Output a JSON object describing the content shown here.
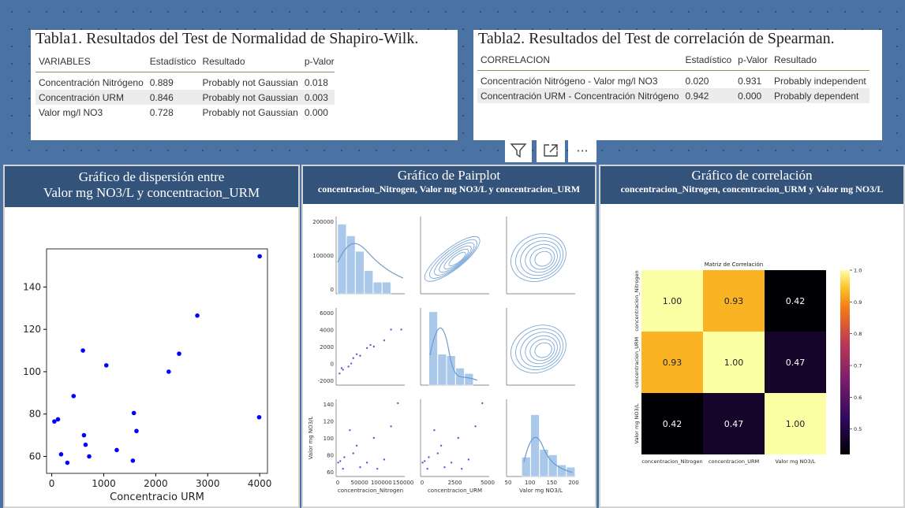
{
  "table1": {
    "title": "Tabla1. Resultados del Test de Normalidad de Shapiro-Wilk.",
    "headers": [
      "VARIABLES",
      "Estadístico",
      "Resultado",
      "p-Valor"
    ],
    "rows": [
      [
        "Concentración Nitrógeno",
        "0.889",
        "Probably not Gaussian",
        "0.018"
      ],
      [
        "Concentración URM",
        "0.846",
        "Probably not Gaussian",
        "0.003"
      ],
      [
        "Valor mg/l NO3",
        "0.728",
        "Probably not Gaussian",
        "0.000"
      ]
    ]
  },
  "table2": {
    "title": "Tabla2. Resultados del Test de correlación de Spearman.",
    "headers": [
      "CORRELACION",
      "Estadístico",
      "p-Valor",
      "Resultado"
    ],
    "rows": [
      [
        "Concentración Nitrógeno - Valor mg/l NO3",
        "0.020",
        "0.931",
        "Probably independent"
      ],
      [
        "Concentración URM - Concentración Nitrógeno",
        "0.942",
        "0.000",
        "Probably dependent"
      ]
    ]
  },
  "toolbar": {
    "filter_icon": "filter-icon",
    "focus_icon": "focus-mode-icon",
    "more_icon": "more-options-icon",
    "more_label": "···"
  },
  "panel1": {
    "title_line1": "Gráfico de dispersión entre",
    "title_line2": "Valor mg NO3/L y concentracion_URM"
  },
  "panel2": {
    "title_line1": "Gráfico de Pairplot",
    "title_line2": "concentracion_Nitrogen, Valor mg NO3/L y concentracion_URM"
  },
  "panel3": {
    "title_line1": "Gráfico de correlación",
    "title_line2": "concentracion_Nitrogen, concentracion_URM y Valor mg NO3/L"
  },
  "chart_data": [
    {
      "type": "scatter",
      "xlabel": "Concentracio URM",
      "ylabel": "",
      "xlim": [
        -100,
        4150
      ],
      "ylim": [
        52,
        158
      ],
      "xticks": [
        0,
        1000,
        2000,
        3000,
        4000
      ],
      "yticks": [
        60,
        80,
        100,
        120,
        140
      ],
      "color": "#0000ff",
      "x": [
        50,
        120,
        180,
        300,
        420,
        600,
        650,
        620,
        720,
        1050,
        1250,
        1560,
        1580,
        1630,
        2250,
        2450,
        2800,
        3990,
        4000
      ],
      "y": [
        76.5,
        77.5,
        61,
        57,
        88.5,
        110,
        65.5,
        70,
        60,
        103,
        63,
        58,
        80.5,
        72,
        100,
        108.5,
        126.5,
        78.5,
        154.5
      ]
    },
    {
      "type": "scatter",
      "title": "",
      "variables": [
        "concentracion_Nitrogen",
        "concentracion_URM",
        "Valor mg NO3/L"
      ],
      "row_ticks": [
        [
          "0",
          "100000",
          "200000"
        ],
        [
          "-2000",
          "0",
          "2000",
          "4000",
          "6000"
        ],
        [
          "60",
          "80",
          "100",
          "120",
          "140"
        ]
      ],
      "col_ticks": [
        [
          "0",
          "50000",
          "100000",
          "150000"
        ],
        [
          "0",
          "2500",
          "5000"
        ],
        [
          "50",
          "100",
          "150",
          "200"
        ]
      ],
      "ylabel_row3": "Valor mg NO3/L",
      "color": "#8fb4dc"
    },
    {
      "type": "heatmap",
      "title": "Matriz de Correlación",
      "rows": [
        "concentracion_Nitrogen",
        "concentracion_URM",
        "Valor mg NO3/L"
      ],
      "cols": [
        "concentracion_Nitrogen",
        "concentracion_URM",
        "Valor mg NO3/L"
      ],
      "values": [
        [
          1.0,
          0.93,
          0.42
        ],
        [
          0.93,
          1.0,
          0.47
        ],
        [
          0.42,
          0.47,
          1.0
        ]
      ],
      "labels": [
        [
          "1.00",
          "0.93",
          "0.42"
        ],
        [
          "0.93",
          "1.00",
          "0.47"
        ],
        [
          "0.42",
          "0.47",
          "1.00"
        ]
      ],
      "colorbar_ticks": [
        "0.5",
        "0.6",
        "0.7",
        "0.8",
        "0.9",
        "1.0"
      ],
      "colormap": "inferno"
    }
  ]
}
